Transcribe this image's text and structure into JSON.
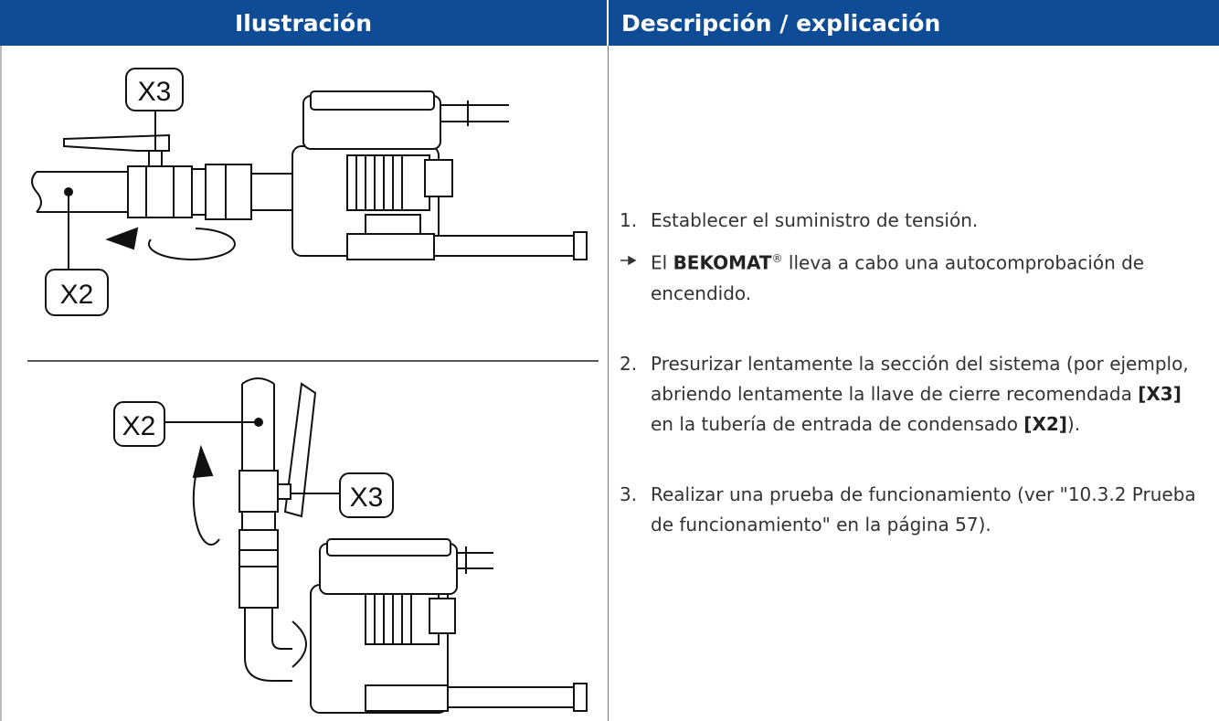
{
  "header": {
    "col1": "Ilustración",
    "col2": "Descripción / explicación"
  },
  "illustration": {
    "top_labels": [
      "X3",
      "X2"
    ],
    "bottom_labels": [
      "X2",
      "X3"
    ]
  },
  "steps": [
    {
      "number": "1.",
      "text": "Establecer el suministro de tensión."
    },
    {
      "parts": [
        "El ",
        "BEKOMAT",
        "®",
        " lleva a cabo una autocomprobación de encendido."
      ]
    },
    {
      "number": "2.",
      "parts": [
        "Presurizar lentamente la sección del sistema (por ejemplo, abriendo lentamente la llave de cierre recomendada ",
        "[X3]",
        " en la tubería de entrada de condensado ",
        "[X2]",
        ")."
      ]
    },
    {
      "number": "3.",
      "text": "Realizar una prueba de funcionamiento (ver \"10.3.2 Prueba de funcionamiento\" en la página 57)."
    }
  ]
}
